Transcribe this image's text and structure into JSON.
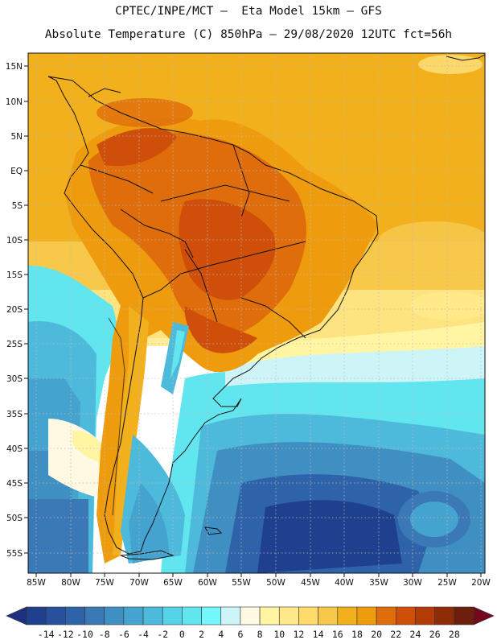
{
  "header": {
    "line1": "CPTEC/INPE/MCT –  Eta Model 15km – GFS",
    "line2": "Absolute Temperature (C) 850hPa – 29/08/2020 12UTC fct=56h"
  },
  "map": {
    "region": "South America",
    "lat_labels": [
      "15N",
      "10N",
      "5N",
      "EQ",
      "5S",
      "10S",
      "15S",
      "20S",
      "25S",
      "30S",
      "35S",
      "40S",
      "45S",
      "50S",
      "55S"
    ],
    "lon_labels": [
      "85W",
      "80W",
      "75W",
      "70W",
      "65W",
      "60W",
      "55W",
      "50W",
      "45W",
      "40W",
      "35W",
      "30W",
      "25W",
      "20W"
    ]
  },
  "colorbar": {
    "labels": [
      "-14",
      "-12",
      "-10",
      "-8",
      "-6",
      "-4",
      "-2",
      "0",
      "2",
      "4",
      "6",
      "8",
      "10",
      "12",
      "14",
      "16",
      "18",
      "20",
      "22",
      "24",
      "26",
      "28"
    ],
    "colors": [
      "#1f3f8f",
      "#27519c",
      "#2f63a9",
      "#3a78b6",
      "#3f8fc3",
      "#45a3cf",
      "#4db9db",
      "#56d3e8",
      "#61e6f0",
      "#73f7fa",
      "#cdf5f8",
      "#fff8e2",
      "#fff5a3",
      "#ffe98a",
      "#ffdb6b",
      "#f7c84a",
      "#f2b01c",
      "#ee9b0e",
      "#e06d0b",
      "#cf4e0a",
      "#b33b08",
      "#8e2b09",
      "#6e1f0b"
    ],
    "under_color": "#1f3080",
    "over_color": "#73081f"
  }
}
